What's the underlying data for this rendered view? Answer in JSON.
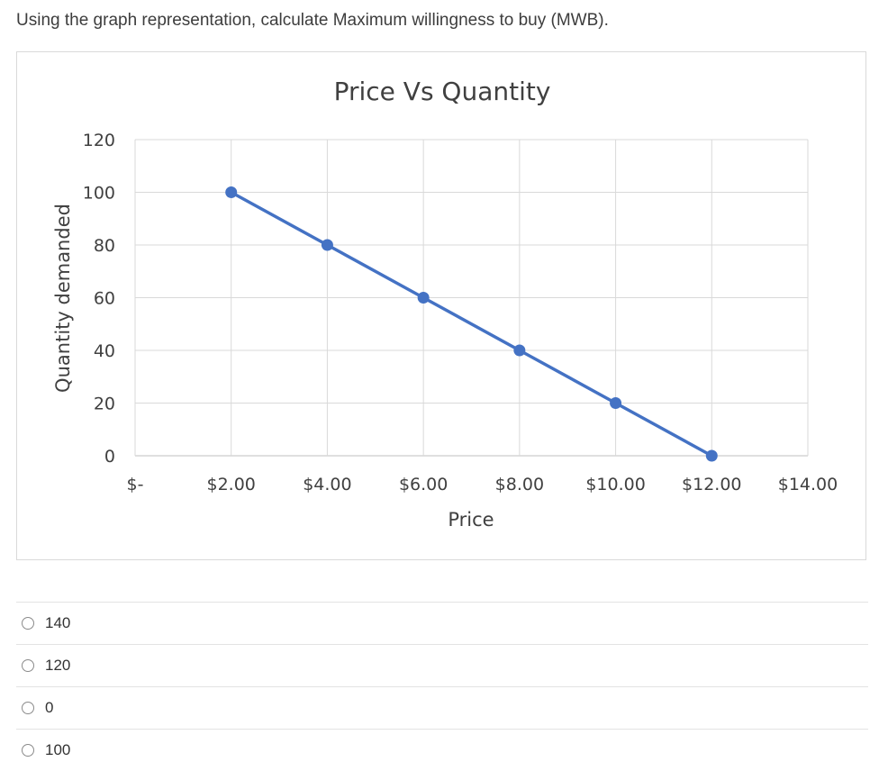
{
  "question": {
    "text": "Using the graph representation, calculate Maximum willingness to buy (MWB)."
  },
  "chart_data": {
    "type": "line",
    "title": "Price Vs Quantity",
    "xlabel": "Price",
    "ylabel": "Quantity demanded",
    "x_tick_labels": [
      "$-",
      "$2.00",
      "$4.00",
      "$6.00",
      "$8.00",
      "$10.00",
      "$12.00",
      "$14.00"
    ],
    "y_tick_labels": [
      "0",
      "20",
      "40",
      "60",
      "80",
      "100",
      "120"
    ],
    "xlim": [
      0,
      14
    ],
    "ylim": [
      0,
      120
    ],
    "grid": true,
    "color": "#4472c4",
    "series": [
      {
        "x": [
          2,
          4,
          6,
          8,
          10,
          12
        ],
        "y": [
          100,
          80,
          60,
          40,
          20,
          0
        ]
      }
    ]
  },
  "options": [
    {
      "label": "140"
    },
    {
      "label": "120"
    },
    {
      "label": "0"
    },
    {
      "label": "100"
    }
  ]
}
